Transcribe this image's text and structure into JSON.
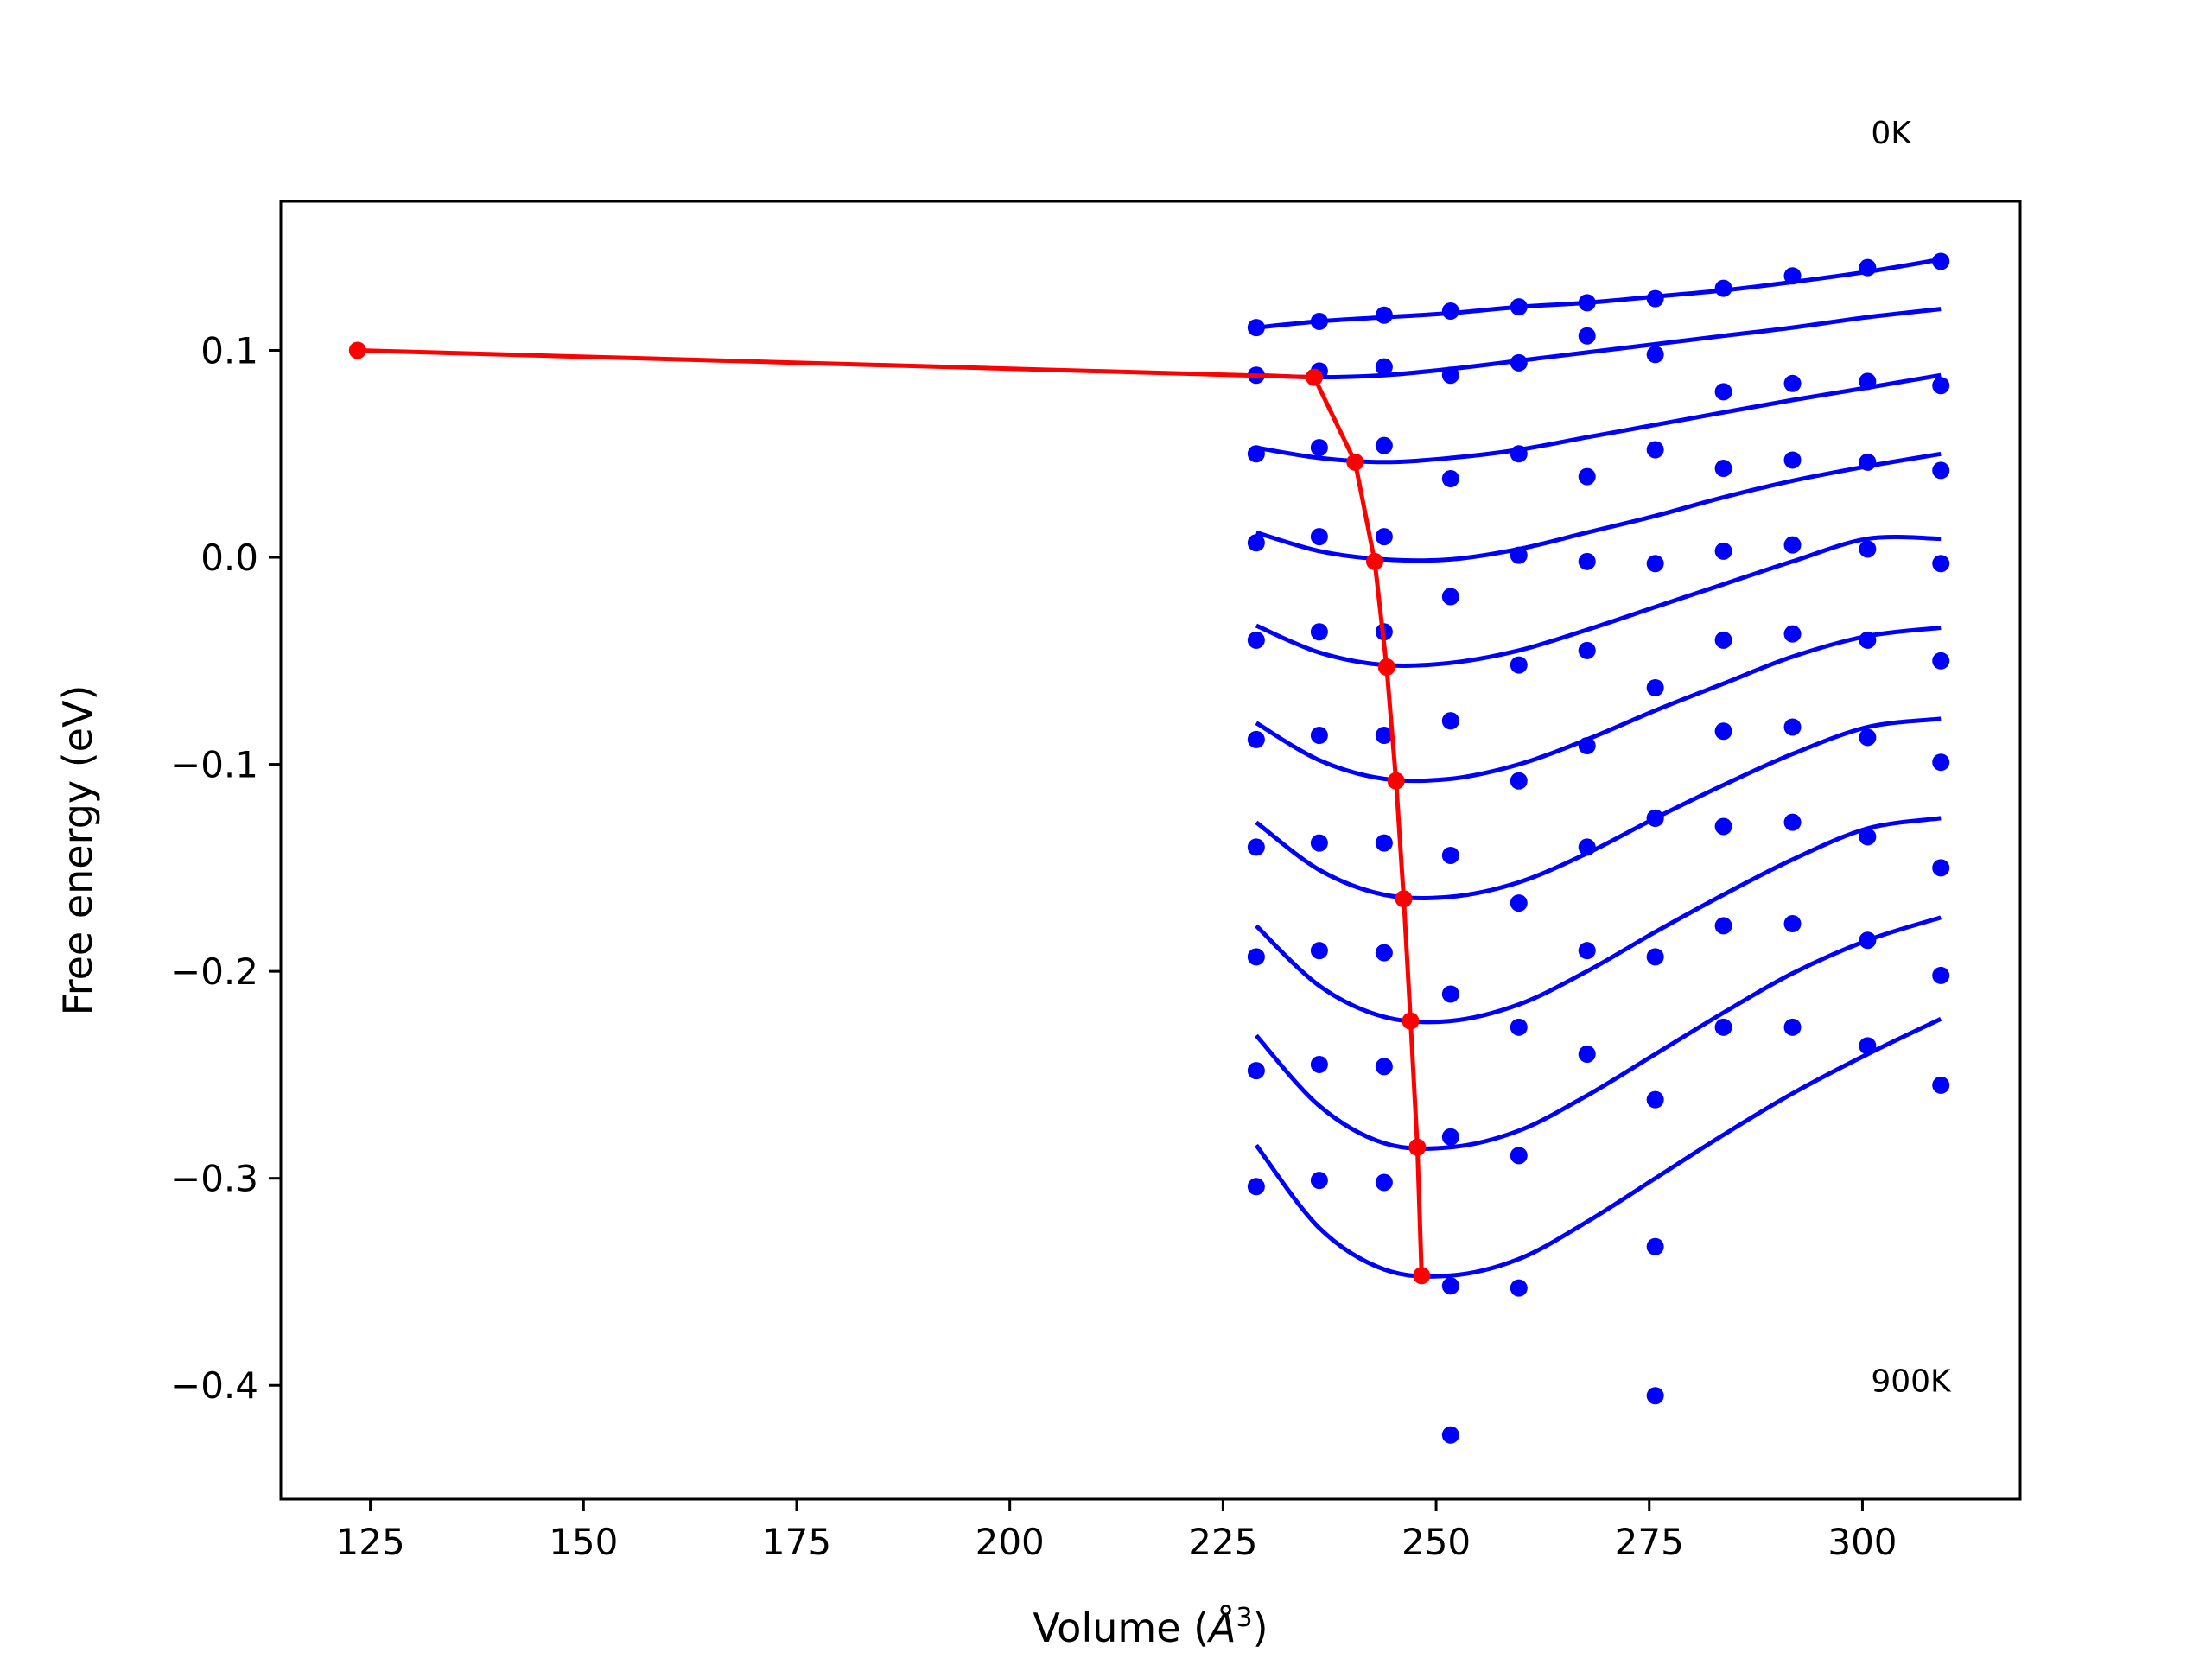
{
  "chart_data": {
    "type": "scatter",
    "title": "",
    "xlabel": "Volume (",
    "xlabel_symbol": "Å",
    "xlabel_power": "3",
    "xlabel_close": ")",
    "ylabel": "Free energy (eV)",
    "xlim": [
      114.5,
      318.5
    ],
    "ylim": [
      -0.455,
      0.172
    ],
    "xticks": [
      125,
      150,
      175,
      200,
      225,
      250,
      275,
      300
    ],
    "xtick_labels": [
      "125",
      "150",
      "175",
      "200",
      "225",
      "250",
      "275",
      "300"
    ],
    "yticks": [
      -0.4,
      -0.3,
      -0.2,
      -0.1,
      0.0,
      0.1
    ],
    "ytick_labels": [
      "−0.4",
      "−0.3",
      "−0.2",
      "−0.1",
      "0.0",
      "0.1"
    ],
    "grid": false,
    "annotations": [
      {
        "text": "0K",
        "x": 301,
        "y": 0.2
      },
      {
        "text": "900K",
        "x": 301,
        "y": -0.403
      }
    ],
    "colors": {
      "points": "#0000ff",
      "fits": "#0000ff",
      "path": "#ff0000",
      "frame": "#000000"
    },
    "x_samples": [
      228.9,
      236.3,
      243.9,
      251.7,
      259.7,
      267.7,
      275.7,
      283.7,
      291.8,
      300.6,
      309.2
    ],
    "point_series": [
      {
        "y": [
          0.111,
          0.114,
          0.117,
          0.119,
          0.121,
          0.123,
          0.125,
          0.13,
          0.136,
          0.14,
          0.143
        ]
      },
      {
        "y": [
          0.088,
          0.09,
          0.092,
          0.088,
          0.094,
          0.107,
          0.098,
          0.08,
          0.084,
          0.085,
          0.083
        ]
      },
      {
        "y": [
          0.05,
          0.053,
          0.054,
          0.038,
          0.05,
          0.039,
          0.052,
          0.043,
          0.047,
          0.046,
          0.042
        ]
      },
      {
        "y": [
          0.007,
          0.01,
          0.01,
          -0.019,
          0.001,
          -0.002,
          -0.003,
          0.003,
          0.006,
          0.004,
          -0.003
        ]
      },
      {
        "y": [
          -0.04,
          -0.036,
          -0.036,
          -0.079,
          -0.052,
          -0.045,
          -0.063,
          -0.04,
          -0.037,
          -0.04,
          -0.05
        ]
      },
      {
        "y": [
          -0.088,
          -0.086,
          -0.086,
          -0.079,
          -0.108,
          -0.091,
          -0.126,
          -0.084,
          -0.082,
          -0.087,
          -0.099
        ]
      },
      {
        "y": [
          -0.14,
          -0.138,
          -0.138,
          -0.144,
          -0.167,
          -0.14,
          -0.126,
          -0.13,
          -0.128,
          -0.135,
          -0.15
        ]
      },
      {
        "y": [
          -0.193,
          -0.19,
          -0.191,
          -0.211,
          -0.227,
          -0.19,
          -0.193,
          -0.178,
          -0.177,
          -0.185,
          -0.202
        ]
      },
      {
        "y": [
          -0.248,
          -0.245,
          -0.246,
          -0.28,
          -0.289,
          -0.24,
          -0.262,
          -0.227,
          -0.227,
          -0.236,
          -0.255
        ]
      },
      {
        "y": [
          -0.304,
          -0.301,
          -0.302,
          -0.352,
          -0.353,
          null,
          -0.333,
          null,
          null,
          null,
          null
        ]
      },
      {
        "y": [
          null,
          null,
          null,
          -0.424,
          null,
          null,
          -0.405,
          null,
          null,
          null,
          null
        ]
      }
    ],
    "fit_curves": [
      {
        "x": [
          228.9,
          236.3,
          243.9,
          251.7,
          259.7,
          267.7,
          275.7,
          283.7,
          291.8,
          300.6,
          309.2
        ],
        "y": [
          0.111,
          0.114,
          0.116,
          0.118,
          0.121,
          0.123,
          0.126,
          0.129,
          0.133,
          0.138,
          0.144
        ]
      },
      {
        "x": [
          228.9,
          236.3,
          243.9,
          251.7,
          259.7,
          267.7,
          275.7,
          283.7,
          291.8,
          300.6,
          309.2
        ],
        "y": [
          0.088,
          0.087,
          0.088,
          0.091,
          0.095,
          0.099,
          0.103,
          0.107,
          0.111,
          0.116,
          0.12
        ]
      },
      {
        "x": [
          228.9,
          236.3,
          243.9,
          251.7,
          259.7,
          267.7,
          275.7,
          283.7,
          291.8,
          300.6,
          309.2
        ],
        "y": [
          0.053,
          0.048,
          0.046,
          0.048,
          0.052,
          0.058,
          0.064,
          0.07,
          0.076,
          0.082,
          0.088
        ]
      },
      {
        "x": [
          228.9,
          236.3,
          243.9,
          251.7,
          259.7,
          267.7,
          275.7,
          283.7,
          291.8,
          300.6,
          309.2
        ],
        "y": [
          0.012,
          0.003,
          -0.001,
          -0.001,
          0.004,
          0.012,
          0.02,
          0.029,
          0.037,
          0.044,
          0.05
        ]
      },
      {
        "x": [
          228.9,
          236.3,
          243.9,
          251.7,
          259.7,
          267.7,
          275.7,
          283.7,
          291.8,
          300.6,
          309.2
        ],
        "y": [
          -0.033,
          -0.046,
          -0.052,
          -0.051,
          -0.045,
          -0.035,
          -0.024,
          -0.013,
          -0.002,
          0.009,
          0.009
        ]
      },
      {
        "x": [
          228.9,
          236.3,
          243.9,
          251.7,
          259.7,
          267.7,
          275.7,
          283.7,
          291.8,
          300.6,
          309.2
        ],
        "y": [
          -0.08,
          -0.098,
          -0.107,
          -0.107,
          -0.1,
          -0.088,
          -0.074,
          -0.061,
          -0.048,
          -0.038,
          -0.034
        ]
      },
      {
        "x": [
          228.9,
          236.3,
          243.9,
          251.7,
          259.7,
          267.7,
          275.7,
          283.7,
          291.8,
          300.6,
          309.2
        ],
        "y": [
          -0.128,
          -0.151,
          -0.163,
          -0.164,
          -0.157,
          -0.143,
          -0.126,
          -0.11,
          -0.095,
          -0.082,
          -0.078
        ]
      },
      {
        "x": [
          228.9,
          236.3,
          243.9,
          251.7,
          259.7,
          267.7,
          275.7,
          283.7,
          291.8,
          300.6,
          309.2
        ],
        "y": [
          -0.178,
          -0.207,
          -0.222,
          -0.224,
          -0.216,
          -0.2,
          -0.181,
          -0.163,
          -0.146,
          -0.131,
          -0.126
        ]
      },
      {
        "x": [
          228.9,
          236.3,
          243.9,
          251.7,
          259.7,
          267.7,
          275.7,
          283.7,
          291.8,
          300.6,
          309.2
        ],
        "y": [
          -0.231,
          -0.265,
          -0.283,
          -0.285,
          -0.277,
          -0.26,
          -0.24,
          -0.22,
          -0.201,
          -0.185,
          -0.174
        ]
      },
      {
        "x": [
          228.9,
          236.3,
          243.9,
          251.7,
          259.7,
          267.7,
          275.7,
          283.7,
          291.8,
          300.6,
          309.2
        ],
        "y": [
          -0.284,
          -0.324,
          -0.344,
          -0.347,
          -0.339,
          -0.321,
          -0.3,
          -0.279,
          -0.259,
          -0.24,
          -0.223
        ]
      }
    ],
    "minimum_path": {
      "x": [
        123.5,
        235.7,
        240.5,
        242.8,
        244.2,
        245.3,
        246.2,
        247.0,
        247.8,
        248.3
      ],
      "y": [
        0.1,
        0.087,
        0.046,
        -0.002,
        -0.053,
        -0.108,
        -0.165,
        -0.224,
        -0.285,
        -0.347
      ]
    }
  }
}
